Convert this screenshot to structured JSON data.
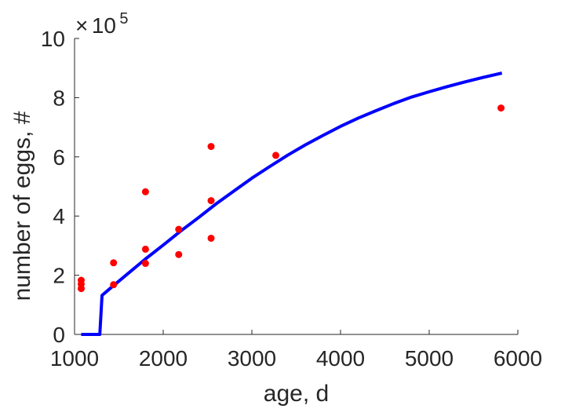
{
  "chart_data": {
    "type": "scatter",
    "xlabel": "age, d",
    "ylabel": "number of eggs, #",
    "y_exponent_label": {
      "times": "×",
      "base": "10",
      "exponent": "5"
    },
    "xlim": [
      1000,
      6000
    ],
    "ylim": [
      0,
      10
    ],
    "x_ticks": [
      1000,
      2000,
      3000,
      4000,
      5000,
      6000
    ],
    "y_ticks": [
      0,
      2,
      4,
      6,
      8,
      10
    ],
    "grid": false,
    "colors": {
      "points": "#ff0000",
      "curve": "#0000ff",
      "axis": "#262626"
    },
    "series": [
      {
        "type": "scatter",
        "points": [
          {
            "x": 1075,
            "y": 1.55
          },
          {
            "x": 1075,
            "y": 1.7
          },
          {
            "x": 1075,
            "y": 1.83
          },
          {
            "x": 1440,
            "y": 1.68
          },
          {
            "x": 1440,
            "y": 2.42
          },
          {
            "x": 1800,
            "y": 2.4
          },
          {
            "x": 1800,
            "y": 2.88
          },
          {
            "x": 1800,
            "y": 4.82
          },
          {
            "x": 2175,
            "y": 2.7
          },
          {
            "x": 2175,
            "y": 3.55
          },
          {
            "x": 2540,
            "y": 3.25
          },
          {
            "x": 2540,
            "y": 4.52
          },
          {
            "x": 2540,
            "y": 6.35
          },
          {
            "x": 3270,
            "y": 6.05
          },
          {
            "x": 5810,
            "y": 7.65
          }
        ]
      },
      {
        "type": "line",
        "points": [
          {
            "x": 1075,
            "y": 0
          },
          {
            "x": 1150,
            "y": 0
          },
          {
            "x": 1230,
            "y": 0
          },
          {
            "x": 1285,
            "y": 0
          },
          {
            "x": 1310,
            "y": 1.32
          },
          {
            "x": 1400,
            "y": 1.55
          },
          {
            "x": 1600,
            "y": 2.05
          },
          {
            "x": 1800,
            "y": 2.55
          },
          {
            "x": 2000,
            "y": 3.02
          },
          {
            "x": 2200,
            "y": 3.5
          },
          {
            "x": 2400,
            "y": 3.95
          },
          {
            "x": 2600,
            "y": 4.42
          },
          {
            "x": 2800,
            "y": 4.85
          },
          {
            "x": 3000,
            "y": 5.28
          },
          {
            "x": 3200,
            "y": 5.67
          },
          {
            "x": 3400,
            "y": 6.05
          },
          {
            "x": 3600,
            "y": 6.4
          },
          {
            "x": 3800,
            "y": 6.72
          },
          {
            "x": 4000,
            "y": 7.03
          },
          {
            "x": 4200,
            "y": 7.31
          },
          {
            "x": 4400,
            "y": 7.56
          },
          {
            "x": 4600,
            "y": 7.8
          },
          {
            "x": 4800,
            "y": 8.02
          },
          {
            "x": 5000,
            "y": 8.2
          },
          {
            "x": 5200,
            "y": 8.37
          },
          {
            "x": 5400,
            "y": 8.53
          },
          {
            "x": 5600,
            "y": 8.68
          },
          {
            "x": 5820,
            "y": 8.83
          }
        ]
      }
    ]
  }
}
